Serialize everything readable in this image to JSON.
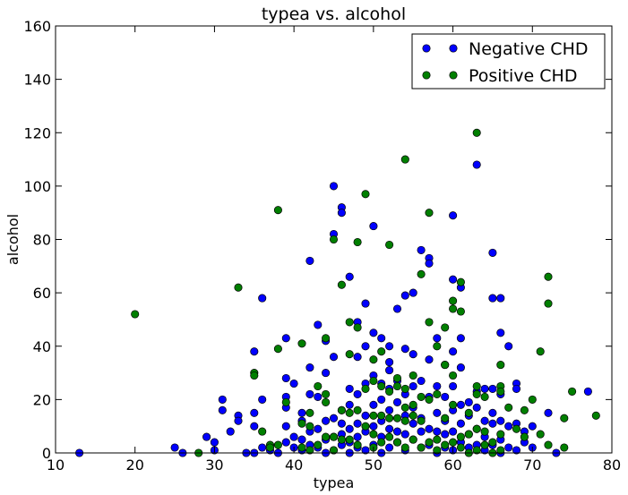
{
  "chart_data": {
    "type": "scatter",
    "title": "typea vs. alcohol",
    "xlabel": "typea",
    "ylabel": "alcohol",
    "xlim": [
      10,
      80
    ],
    "ylim": [
      0,
      160
    ],
    "xticks": [
      "10",
      "20",
      "30",
      "40",
      "50",
      "60",
      "70",
      "80"
    ],
    "yticks": [
      "0",
      "20",
      "40",
      "60",
      "80",
      "100",
      "120",
      "140",
      "160"
    ],
    "grid": false,
    "legend_position": "top-right",
    "series": [
      {
        "name": "Negative CHD",
        "color": "#0000ff",
        "points": [
          [
            13,
            0
          ],
          [
            25,
            2
          ],
          [
            26,
            0
          ],
          [
            29,
            6
          ],
          [
            30,
            4
          ],
          [
            30,
            1
          ],
          [
            31,
            20
          ],
          [
            31,
            16
          ],
          [
            32,
            8
          ],
          [
            33,
            14
          ],
          [
            33,
            12
          ],
          [
            34,
            0
          ],
          [
            35,
            38
          ],
          [
            35,
            15
          ],
          [
            35,
            10
          ],
          [
            35,
            0
          ],
          [
            36,
            58
          ],
          [
            36,
            20
          ],
          [
            36,
            2
          ],
          [
            37,
            1
          ],
          [
            38,
            0
          ],
          [
            39,
            43
          ],
          [
            39,
            28
          ],
          [
            39,
            21
          ],
          [
            39,
            17
          ],
          [
            39,
            10
          ],
          [
            39,
            4
          ],
          [
            40,
            26
          ],
          [
            40,
            6
          ],
          [
            40,
            2
          ],
          [
            41,
            15
          ],
          [
            41,
            12
          ],
          [
            41,
            5
          ],
          [
            41,
            1
          ],
          [
            42,
            72
          ],
          [
            42,
            32
          ],
          [
            42,
            22
          ],
          [
            42,
            8
          ],
          [
            42,
            3
          ],
          [
            43,
            48
          ],
          [
            43,
            21
          ],
          [
            43,
            9
          ],
          [
            43,
            2
          ],
          [
            44,
            42
          ],
          [
            44,
            30
          ],
          [
            44,
            12
          ],
          [
            44,
            5
          ],
          [
            44,
            0
          ],
          [
            45,
            100
          ],
          [
            45,
            82
          ],
          [
            45,
            36
          ],
          [
            45,
            13
          ],
          [
            45,
            6
          ],
          [
            45,
            1
          ],
          [
            46,
            92
          ],
          [
            46,
            90
          ],
          [
            46,
            16
          ],
          [
            46,
            11
          ],
          [
            46,
            7
          ],
          [
            46,
            3
          ],
          [
            47,
            66
          ],
          [
            47,
            24
          ],
          [
            47,
            18
          ],
          [
            47,
            9
          ],
          [
            47,
            4
          ],
          [
            47,
            0
          ],
          [
            48,
            49
          ],
          [
            48,
            36
          ],
          [
            48,
            22
          ],
          [
            48,
            11
          ],
          [
            48,
            6
          ],
          [
            48,
            2
          ],
          [
            49,
            56
          ],
          [
            49,
            40
          ],
          [
            49,
            26
          ],
          [
            49,
            14
          ],
          [
            49,
            8
          ],
          [
            49,
            1
          ],
          [
            50,
            85
          ],
          [
            50,
            45
          ],
          [
            50,
            29
          ],
          [
            50,
            18
          ],
          [
            50,
            10
          ],
          [
            50,
            3
          ],
          [
            51,
            43
          ],
          [
            51,
            26
          ],
          [
            51,
            20
          ],
          [
            51,
            12
          ],
          [
            51,
            6
          ],
          [
            51,
            0
          ],
          [
            52,
            40
          ],
          [
            52,
            34
          ],
          [
            52,
            31
          ],
          [
            52,
            24
          ],
          [
            52,
            16
          ],
          [
            52,
            9
          ],
          [
            52,
            2
          ],
          [
            53,
            54
          ],
          [
            53,
            27
          ],
          [
            53,
            19
          ],
          [
            53,
            8
          ],
          [
            53,
            4
          ],
          [
            54,
            59
          ],
          [
            54,
            39
          ],
          [
            54,
            22
          ],
          [
            54,
            14
          ],
          [
            54,
            7
          ],
          [
            54,
            1
          ],
          [
            55,
            60
          ],
          [
            55,
            37
          ],
          [
            55,
            25
          ],
          [
            55,
            17
          ],
          [
            55,
            11
          ],
          [
            55,
            5
          ],
          [
            56,
            76
          ],
          [
            56,
            27
          ],
          [
            56,
            13
          ],
          [
            56,
            8
          ],
          [
            56,
            2
          ],
          [
            57,
            73
          ],
          [
            57,
            71
          ],
          [
            57,
            35
          ],
          [
            57,
            21
          ],
          [
            57,
            9
          ],
          [
            57,
            3
          ],
          [
            58,
            43
          ],
          [
            58,
            25
          ],
          [
            58,
            15
          ],
          [
            58,
            8
          ],
          [
            58,
            0
          ],
          [
            59,
            33
          ],
          [
            59,
            21
          ],
          [
            59,
            12
          ],
          [
            59,
            7
          ],
          [
            59,
            2
          ],
          [
            60,
            89
          ],
          [
            60,
            65
          ],
          [
            60,
            38
          ],
          [
            60,
            25
          ],
          [
            60,
            16
          ],
          [
            60,
            8
          ],
          [
            60,
            1
          ],
          [
            61,
            62
          ],
          [
            61,
            43
          ],
          [
            61,
            32
          ],
          [
            61,
            18
          ],
          [
            61,
            11
          ],
          [
            61,
            4
          ],
          [
            62,
            19
          ],
          [
            62,
            14
          ],
          [
            62,
            7
          ],
          [
            62,
            2
          ],
          [
            63,
            108
          ],
          [
            63,
            23
          ],
          [
            63,
            17
          ],
          [
            63,
            9
          ],
          [
            63,
            3
          ],
          [
            64,
            24
          ],
          [
            64,
            12
          ],
          [
            64,
            6
          ],
          [
            64,
            1
          ],
          [
            65,
            75
          ],
          [
            65,
            58
          ],
          [
            65,
            24
          ],
          [
            65,
            15
          ],
          [
            65,
            11
          ],
          [
            65,
            3
          ],
          [
            66,
            58
          ],
          [
            66,
            45
          ],
          [
            66,
            22
          ],
          [
            66,
            12
          ],
          [
            66,
            5
          ],
          [
            66,
            0
          ],
          [
            67,
            40
          ],
          [
            67,
            10
          ],
          [
            67,
            2
          ],
          [
            68,
            26
          ],
          [
            68,
            24
          ],
          [
            68,
            11
          ],
          [
            68,
            1
          ],
          [
            69,
            8
          ],
          [
            69,
            4
          ],
          [
            70,
            10
          ],
          [
            70,
            2
          ],
          [
            72,
            15
          ],
          [
            73,
            0
          ],
          [
            77,
            23
          ]
        ]
      },
      {
        "name": "Positive CHD",
        "color": "#007f00",
        "points": [
          [
            20,
            52
          ],
          [
            28,
            0
          ],
          [
            33,
            62
          ],
          [
            35,
            30
          ],
          [
            35,
            29
          ],
          [
            36,
            8
          ],
          [
            37,
            3
          ],
          [
            37,
            2
          ],
          [
            38,
            91
          ],
          [
            38,
            39
          ],
          [
            38,
            3
          ],
          [
            39,
            19
          ],
          [
            41,
            41
          ],
          [
            41,
            11
          ],
          [
            41,
            2
          ],
          [
            42,
            15
          ],
          [
            42,
            10
          ],
          [
            42,
            1
          ],
          [
            43,
            25
          ],
          [
            43,
            3
          ],
          [
            44,
            43
          ],
          [
            44,
            22
          ],
          [
            44,
            19
          ],
          [
            44,
            6
          ],
          [
            45,
            80
          ],
          [
            45,
            6
          ],
          [
            45,
            1
          ],
          [
            46,
            63
          ],
          [
            46,
            16
          ],
          [
            46,
            5
          ],
          [
            47,
            49
          ],
          [
            47,
            37
          ],
          [
            47,
            15
          ],
          [
            47,
            5
          ],
          [
            48,
            79
          ],
          [
            48,
            47
          ],
          [
            48,
            16
          ],
          [
            48,
            3
          ],
          [
            49,
            97
          ],
          [
            49,
            24
          ],
          [
            49,
            10
          ],
          [
            50,
            35
          ],
          [
            50,
            27
          ],
          [
            50,
            14
          ],
          [
            50,
            7
          ],
          [
            50,
            2
          ],
          [
            51,
            38
          ],
          [
            51,
            25
          ],
          [
            51,
            14
          ],
          [
            51,
            4
          ],
          [
            52,
            78
          ],
          [
            52,
            23
          ],
          [
            52,
            13
          ],
          [
            52,
            6
          ],
          [
            53,
            28
          ],
          [
            53,
            25
          ],
          [
            53,
            13
          ],
          [
            53,
            4
          ],
          [
            54,
            110
          ],
          [
            54,
            24
          ],
          [
            54,
            17
          ],
          [
            54,
            12
          ],
          [
            54,
            2
          ],
          [
            55,
            29
          ],
          [
            55,
            18
          ],
          [
            55,
            14
          ],
          [
            55,
            5
          ],
          [
            56,
            67
          ],
          [
            56,
            21
          ],
          [
            56,
            12
          ],
          [
            56,
            2
          ],
          [
            57,
            90
          ],
          [
            57,
            49
          ],
          [
            57,
            20
          ],
          [
            57,
            4
          ],
          [
            58,
            40
          ],
          [
            58,
            22
          ],
          [
            58,
            5
          ],
          [
            58,
            1
          ],
          [
            59,
            47
          ],
          [
            59,
            33
          ],
          [
            59,
            13
          ],
          [
            59,
            3
          ],
          [
            60,
            57
          ],
          [
            60,
            54
          ],
          [
            60,
            29
          ],
          [
            60,
            18
          ],
          [
            60,
            4
          ],
          [
            61,
            64
          ],
          [
            61,
            53
          ],
          [
            61,
            6
          ],
          [
            61,
            2
          ],
          [
            62,
            15
          ],
          [
            62,
            7
          ],
          [
            62,
            0
          ],
          [
            63,
            120
          ],
          [
            63,
            25
          ],
          [
            63,
            22
          ],
          [
            63,
            9
          ],
          [
            63,
            1
          ],
          [
            64,
            21
          ],
          [
            64,
            8
          ],
          [
            64,
            3
          ],
          [
            65,
            4
          ],
          [
            65,
            0
          ],
          [
            66,
            33
          ],
          [
            66,
            25
          ],
          [
            66,
            23
          ],
          [
            66,
            7
          ],
          [
            66,
            1
          ],
          [
            67,
            17
          ],
          [
            68,
            9
          ],
          [
            69,
            16
          ],
          [
            69,
            6
          ],
          [
            70,
            20
          ],
          [
            71,
            38
          ],
          [
            71,
            7
          ],
          [
            72,
            66
          ],
          [
            72,
            56
          ],
          [
            72,
            3
          ],
          [
            74,
            13
          ],
          [
            74,
            2
          ],
          [
            75,
            23
          ],
          [
            78,
            14
          ]
        ]
      }
    ]
  }
}
